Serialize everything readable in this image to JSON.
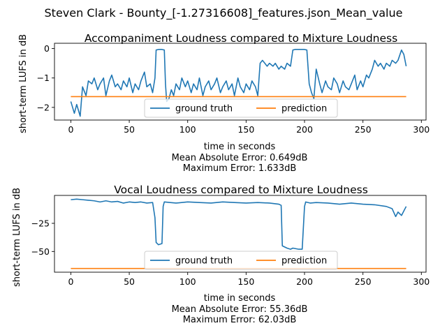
{
  "figure": {
    "suptitle": "Steven Clark - Bounty_[-1.27316608]_features.json_Mean_value"
  },
  "colors": {
    "ground_truth": "#1f77b4",
    "prediction": "#ff7f0e"
  },
  "chart_data": [
    {
      "type": "line",
      "title": "Accompaniment Loudness compared to Mixture Loudness",
      "xlabel": "time in seconds",
      "ylabel": "short-term LUFS in dB",
      "xlim": [
        -14,
        304
      ],
      "ylim": [
        -2.43,
        0.18
      ],
      "xticks": [
        "0",
        "50",
        "100",
        "150",
        "200",
        "250",
        "300"
      ],
      "yticks": [
        "0",
        "−1",
        "−2"
      ],
      "xtick_values": [
        0,
        50,
        100,
        150,
        200,
        250,
        300
      ],
      "ytick_values": [
        0,
        -1,
        -2
      ],
      "legend": {
        "placement": "lower-center",
        "columns": 2
      },
      "series": [
        {
          "name": "ground truth",
          "x": [
            0,
            3,
            5,
            8,
            10,
            13,
            15,
            18,
            20,
            23,
            25,
            28,
            30,
            33,
            35,
            38,
            40,
            43,
            45,
            48,
            50,
            53,
            55,
            58,
            60,
            63,
            65,
            68,
            70,
            72,
            73,
            75,
            78,
            80,
            81,
            82,
            84,
            86,
            88,
            90,
            93,
            95,
            98,
            100,
            103,
            105,
            108,
            110,
            113,
            115,
            118,
            120,
            123,
            125,
            128,
            130,
            133,
            135,
            138,
            140,
            143,
            145,
            148,
            150,
            153,
            155,
            158,
            160,
            162,
            164,
            166,
            168,
            170,
            173,
            175,
            178,
            180,
            183,
            185,
            188,
            190,
            192,
            195,
            198,
            200,
            202,
            204,
            206,
            208,
            210,
            213,
            215,
            218,
            220,
            223,
            225,
            228,
            230,
            233,
            235,
            238,
            240,
            243,
            245,
            248,
            250,
            253,
            255,
            258,
            260,
            263,
            265,
            268,
            270,
            273,
            275,
            278,
            280,
            283,
            285,
            287
          ],
          "values": [
            -1.8,
            -2.2,
            -1.9,
            -2.3,
            -1.3,
            -1.6,
            -1.1,
            -1.2,
            -1.0,
            -1.4,
            -1.2,
            -1.0,
            -1.6,
            -1.1,
            -0.9,
            -1.3,
            -1.2,
            -1.4,
            -1.1,
            -1.3,
            -1.0,
            -1.5,
            -1.2,
            -1.4,
            -1.1,
            -0.8,
            -1.3,
            -1.2,
            -1.5,
            -1.0,
            -0.05,
            -0.03,
            -0.03,
            -0.05,
            -1.2,
            -1.8,
            -1.7,
            -1.4,
            -1.6,
            -1.2,
            -1.4,
            -1.0,
            -1.3,
            -1.1,
            -1.5,
            -1.2,
            -1.4,
            -1.0,
            -1.6,
            -1.3,
            -1.1,
            -1.4,
            -1.2,
            -1.0,
            -1.5,
            -1.3,
            -1.1,
            -1.4,
            -1.2,
            -1.6,
            -1.0,
            -1.3,
            -1.5,
            -1.2,
            -1.4,
            -1.1,
            -1.3,
            -1.6,
            -0.5,
            -0.4,
            -0.5,
            -0.6,
            -0.5,
            -0.6,
            -0.5,
            -0.7,
            -0.6,
            -0.7,
            -0.5,
            -0.6,
            -0.05,
            -0.03,
            -0.03,
            -0.03,
            -0.03,
            -0.05,
            -1.2,
            -1.5,
            -1.7,
            -0.7,
            -1.2,
            -1.5,
            -1.1,
            -1.3,
            -1.4,
            -1.0,
            -1.2,
            -1.5,
            -1.1,
            -1.3,
            -1.4,
            -1.2,
            -0.9,
            -1.4,
            -1.1,
            -1.3,
            -0.9,
            -1.0,
            -0.7,
            -0.4,
            -0.6,
            -0.5,
            -0.7,
            -0.5,
            -0.6,
            -0.4,
            -0.5,
            -0.4,
            -0.05,
            -0.2,
            -0.6
          ]
        },
        {
          "name": "prediction",
          "x": [
            0,
            287
          ],
          "values": [
            -1.633,
            -1.633
          ]
        }
      ],
      "annotations": [
        "Mean Absolute Error: 0.649dB",
        "Maximum Error: 1.633dB"
      ]
    },
    {
      "type": "line",
      "title": "Vocal Loudness compared to Mixture Loudness",
      "xlabel": "time in seconds",
      "ylabel": "short-term LUFS in dB",
      "xlim": [
        -14,
        304
      ],
      "ylim": [
        -68.4,
        -0.2
      ],
      "xticks": [
        "0",
        "50",
        "100",
        "150",
        "200",
        "250",
        "300"
      ],
      "yticks": [
        "−25",
        "−50"
      ],
      "xtick_values": [
        0,
        50,
        100,
        150,
        200,
        250,
        300
      ],
      "ytick_values": [
        -25,
        -50
      ],
      "legend": {
        "placement": "lower-center",
        "columns": 2
      },
      "series": [
        {
          "name": "ground truth",
          "x": [
            0,
            5,
            10,
            15,
            20,
            25,
            30,
            35,
            40,
            45,
            50,
            55,
            60,
            65,
            70,
            72,
            73,
            75,
            78,
            79,
            80,
            85,
            90,
            100,
            110,
            120,
            130,
            140,
            150,
            160,
            170,
            178,
            180,
            181,
            185,
            188,
            190,
            195,
            198,
            200,
            201,
            205,
            210,
            220,
            230,
            240,
            250,
            260,
            270,
            275,
            278,
            280,
            283,
            285,
            287
          ],
          "values": [
            -4,
            -3.5,
            -4,
            -4.5,
            -5,
            -6,
            -5,
            -6,
            -5.5,
            -7,
            -6,
            -6.5,
            -6,
            -7,
            -6.5,
            -20,
            -42,
            -44,
            -43,
            -10,
            -6,
            -6.5,
            -7,
            -6,
            -6.5,
            -7,
            -6,
            -6.5,
            -7,
            -6.5,
            -7,
            -8,
            -9,
            -45,
            -47,
            -48,
            -47,
            -48,
            -48,
            -10,
            -6,
            -7,
            -6.5,
            -7,
            -8,
            -7,
            -8,
            -8.5,
            -10,
            -12,
            -19,
            -15,
            -18,
            -14,
            -10
          ]
        },
        {
          "name": "prediction",
          "x": [
            0,
            287
          ],
          "values": [
            -65.1,
            -65.1
          ]
        }
      ],
      "annotations": [
        "Mean Absolute Error: 55.36dB",
        "Maximum Error: 62.03dB"
      ]
    }
  ]
}
